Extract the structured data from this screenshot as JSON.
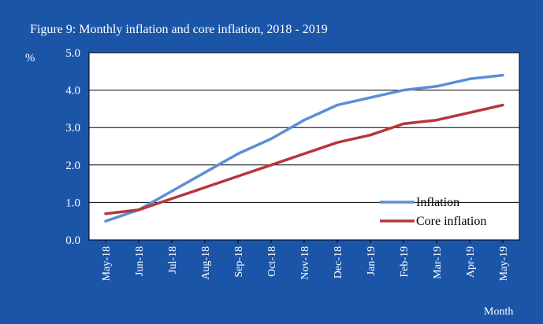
{
  "chart_data": {
    "type": "line",
    "title": "Figure 9: Monthly inflation and core inflation, 2018 - 2019",
    "ylabel": "%",
    "xlabel": "Month",
    "categories": [
      "May-18",
      "Jun-18",
      "Jul-18",
      "Aug-18",
      "Sep-18",
      "Oct-18",
      "Nov-18",
      "Dec-18",
      "Jan-19",
      "Feb-19",
      "Mar-19",
      "Apr-19",
      "May-19"
    ],
    "ylim": [
      0.0,
      5.0
    ],
    "yticks": [
      "0.0",
      "1.0",
      "2.0",
      "3.0",
      "4.0",
      "5.0"
    ],
    "grid": true,
    "legend_position": "bottom-right",
    "series": [
      {
        "name": "Inflation",
        "color": "#5b8fd6",
        "values": [
          0.5,
          0.8,
          1.3,
          1.8,
          2.3,
          2.7,
          3.2,
          3.6,
          3.8,
          4.0,
          4.1,
          4.3,
          4.4
        ]
      },
      {
        "name": "Core inflation",
        "color": "#b5373a",
        "values": [
          0.7,
          0.8,
          1.1,
          1.4,
          1.7,
          2.0,
          2.3,
          2.6,
          2.8,
          3.1,
          3.2,
          3.4,
          3.6
        ]
      }
    ]
  },
  "colors": {
    "frame_background": "#1b55a8",
    "plot_background": "#ffffff",
    "gridline": "#000000"
  }
}
